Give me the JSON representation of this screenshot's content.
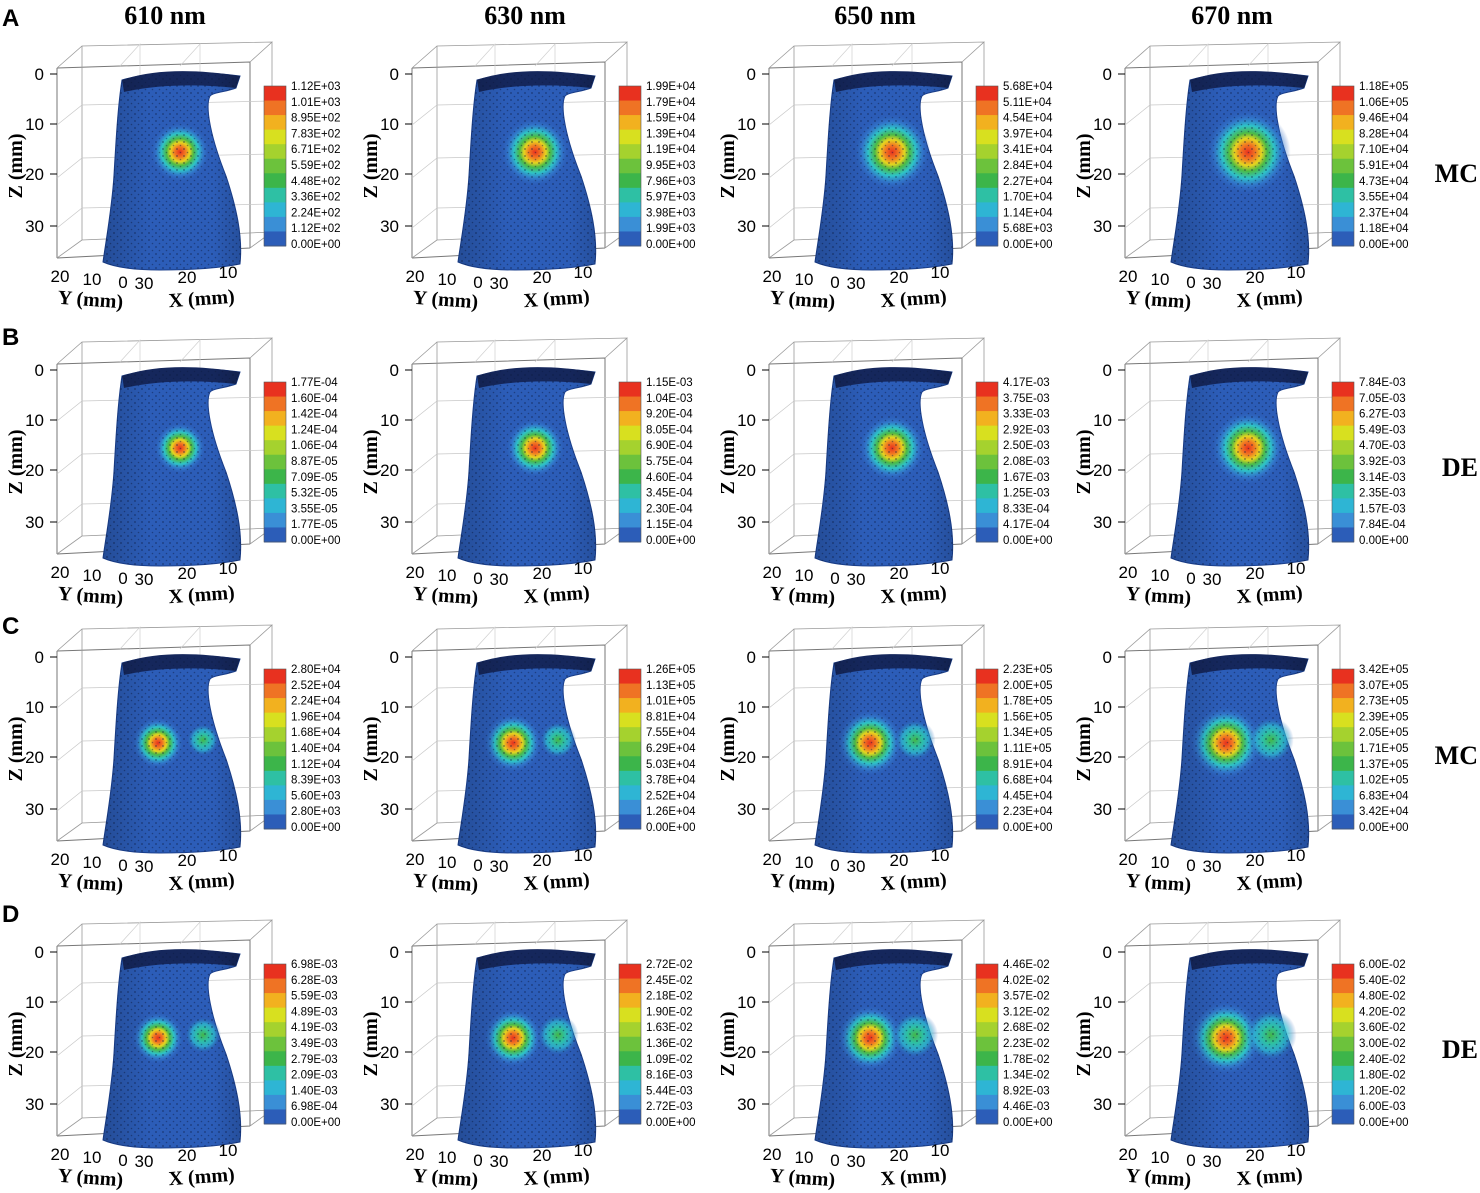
{
  "figure": {
    "columns": [
      "610 nm",
      "630 nm",
      "650 nm",
      "670 nm"
    ],
    "axis_labels": {
      "z": "Z (mm)",
      "y": "Y (mm)",
      "x": "X (mm)"
    },
    "z_ticks": [
      "0",
      "10",
      "20",
      "30"
    ],
    "y_ticks": [
      "20",
      "10",
      "0"
    ],
    "x_ticks": [
      "30",
      "20",
      "10"
    ],
    "colormap": [
      "#2c5db8",
      "#3a8fd6",
      "#2eb5d4",
      "#2ec0a4",
      "#3cb54a",
      "#6cc23c",
      "#a5d22e",
      "#d8e01f",
      "#f2b11f",
      "#ef7324",
      "#e8311f"
    ],
    "rows": [
      {
        "letter": "A",
        "method": "MC"
      },
      {
        "letter": "B",
        "method": "DE"
      },
      {
        "letter": "C",
        "method": "MC"
      },
      {
        "letter": "D",
        "method": "DE"
      }
    ]
  },
  "chart_data": [
    {
      "type": "heatmap",
      "panel": "A",
      "wavelength": "610 nm",
      "method": "MC",
      "sources": 1,
      "colorbar": [
        "1.12E+03",
        "1.01E+03",
        "8.95E+02",
        "7.83E+02",
        "6.71E+02",
        "5.59E+02",
        "4.48E+02",
        "3.36E+02",
        "2.24E+02",
        "1.12E+02",
        "0.00E+00"
      ]
    },
    {
      "type": "heatmap",
      "panel": "A",
      "wavelength": "630 nm",
      "method": "MC",
      "sources": 1,
      "colorbar": [
        "1.99E+04",
        "1.79E+04",
        "1.59E+04",
        "1.39E+04",
        "1.19E+04",
        "9.95E+03",
        "7.96E+03",
        "5.97E+03",
        "3.98E+03",
        "1.99E+03",
        "0.00E+00"
      ]
    },
    {
      "type": "heatmap",
      "panel": "A",
      "wavelength": "650 nm",
      "method": "MC",
      "sources": 1,
      "colorbar": [
        "5.68E+04",
        "5.11E+04",
        "4.54E+04",
        "3.97E+04",
        "3.41E+04",
        "2.84E+04",
        "2.27E+04",
        "1.70E+04",
        "1.14E+04",
        "5.68E+03",
        "0.00E+00"
      ]
    },
    {
      "type": "heatmap",
      "panel": "A",
      "wavelength": "670 nm",
      "method": "MC",
      "sources": 1,
      "colorbar": [
        "1.18E+05",
        "1.06E+05",
        "9.46E+04",
        "8.28E+04",
        "7.10E+04",
        "5.91E+04",
        "4.73E+04",
        "3.55E+04",
        "2.37E+04",
        "1.18E+04",
        "0.00E+00"
      ]
    },
    {
      "type": "heatmap",
      "panel": "B",
      "wavelength": "610 nm",
      "method": "DE",
      "sources": 1,
      "colorbar": [
        "1.77E-04",
        "1.60E-04",
        "1.42E-04",
        "1.24E-04",
        "1.06E-04",
        "8.87E-05",
        "7.09E-05",
        "5.32E-05",
        "3.55E-05",
        "1.77E-05",
        "0.00E+00"
      ]
    },
    {
      "type": "heatmap",
      "panel": "B",
      "wavelength": "630 nm",
      "method": "DE",
      "sources": 1,
      "colorbar": [
        "1.15E-03",
        "1.04E-03",
        "9.20E-04",
        "8.05E-04",
        "6.90E-04",
        "5.75E-04",
        "4.60E-04",
        "3.45E-04",
        "2.30E-04",
        "1.15E-04",
        "0.00E+00"
      ]
    },
    {
      "type": "heatmap",
      "panel": "B",
      "wavelength": "650 nm",
      "method": "DE",
      "sources": 1,
      "colorbar": [
        "4.17E-03",
        "3.75E-03",
        "3.33E-03",
        "2.92E-03",
        "2.50E-03",
        "2.08E-03",
        "1.67E-03",
        "1.25E-03",
        "8.33E-04",
        "4.17E-04",
        "0.00E+00"
      ]
    },
    {
      "type": "heatmap",
      "panel": "B",
      "wavelength": "670 nm",
      "method": "DE",
      "sources": 1,
      "colorbar": [
        "7.84E-03",
        "7.05E-03",
        "6.27E-03",
        "5.49E-03",
        "4.70E-03",
        "3.92E-03",
        "3.14E-03",
        "2.35E-03",
        "1.57E-03",
        "7.84E-04",
        "0.00E+00"
      ]
    },
    {
      "type": "heatmap",
      "panel": "C",
      "wavelength": "610 nm",
      "method": "MC",
      "sources": 2,
      "colorbar": [
        "2.80E+04",
        "2.52E+04",
        "2.24E+04",
        "1.96E+04",
        "1.68E+04",
        "1.40E+04",
        "1.12E+04",
        "8.39E+03",
        "5.60E+03",
        "2.80E+03",
        "0.00E+00"
      ]
    },
    {
      "type": "heatmap",
      "panel": "C",
      "wavelength": "630 nm",
      "method": "MC",
      "sources": 2,
      "colorbar": [
        "1.26E+05",
        "1.13E+05",
        "1.01E+05",
        "8.81E+04",
        "7.55E+04",
        "6.29E+04",
        "5.03E+04",
        "3.78E+04",
        "2.52E+04",
        "1.26E+04",
        "0.00E+00"
      ]
    },
    {
      "type": "heatmap",
      "panel": "C",
      "wavelength": "650 nm",
      "method": "MC",
      "sources": 2,
      "colorbar": [
        "2.23E+05",
        "2.00E+05",
        "1.78E+05",
        "1.56E+05",
        "1.34E+05",
        "1.11E+05",
        "8.91E+04",
        "6.68E+04",
        "4.45E+04",
        "2.23E+04",
        "0.00E+00"
      ]
    },
    {
      "type": "heatmap",
      "panel": "C",
      "wavelength": "670 nm",
      "method": "MC",
      "sources": 2,
      "colorbar": [
        "3.42E+05",
        "3.07E+05",
        "2.73E+05",
        "2.39E+05",
        "2.05E+05",
        "1.71E+05",
        "1.37E+05",
        "1.02E+05",
        "6.83E+04",
        "3.42E+04",
        "0.00E+00"
      ]
    },
    {
      "type": "heatmap",
      "panel": "D",
      "wavelength": "610 nm",
      "method": "DE",
      "sources": 2,
      "colorbar": [
        "6.98E-03",
        "6.28E-03",
        "5.59E-03",
        "4.89E-03",
        "4.19E-03",
        "3.49E-03",
        "2.79E-03",
        "2.09E-03",
        "1.40E-03",
        "6.98E-04",
        "0.00E+00"
      ]
    },
    {
      "type": "heatmap",
      "panel": "D",
      "wavelength": "630 nm",
      "method": "DE",
      "sources": 2,
      "colorbar": [
        "2.72E-02",
        "2.45E-02",
        "2.18E-02",
        "1.90E-02",
        "1.63E-02",
        "1.36E-02",
        "1.09E-02",
        "8.16E-03",
        "5.44E-03",
        "2.72E-03",
        "0.00E+00"
      ]
    },
    {
      "type": "heatmap",
      "panel": "D",
      "wavelength": "650 nm",
      "method": "DE",
      "sources": 2,
      "colorbar": [
        "4.46E-02",
        "4.02E-02",
        "3.57E-02",
        "3.12E-02",
        "2.68E-02",
        "2.23E-02",
        "1.78E-02",
        "1.34E-02",
        "8.92E-03",
        "4.46E-03",
        "0.00E+00"
      ]
    },
    {
      "type": "heatmap",
      "panel": "D",
      "wavelength": "670 nm",
      "method": "DE",
      "sources": 2,
      "colorbar": [
        "6.00E-02",
        "5.40E-02",
        "4.80E-02",
        "4.20E-02",
        "3.60E-02",
        "3.00E-02",
        "2.40E-02",
        "1.80E-02",
        "1.20E-02",
        "6.00E-03",
        "0.00E+00"
      ]
    }
  ]
}
